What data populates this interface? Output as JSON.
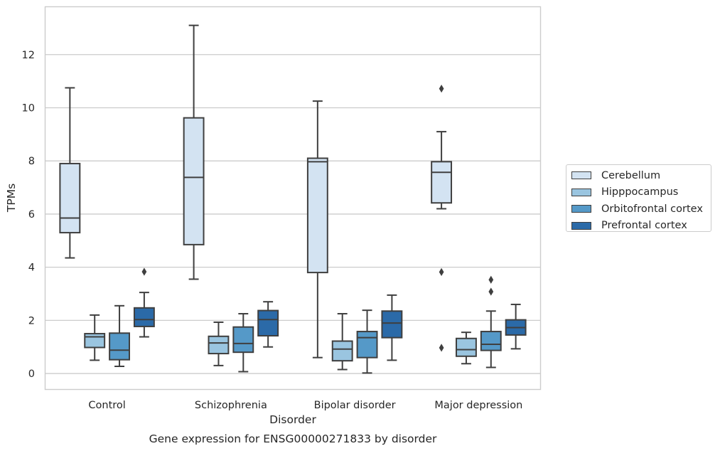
{
  "chart_data": {
    "type": "box",
    "title": "Gene expression for ENSG00000271833 by disorder",
    "xlabel": "Disorder",
    "ylabel": "TPMs",
    "ylim": [
      -0.6,
      13.8
    ],
    "yticks": [
      0,
      2,
      4,
      6,
      8,
      10,
      12
    ],
    "grid": true,
    "legend_position": "right",
    "categories": [
      "Control",
      "Schizophrenia",
      "Bipolar disorder",
      "Major depression"
    ],
    "series": [
      {
        "name": "Cerebellum",
        "color": "#d3e3f2",
        "boxes": [
          {
            "whislo": 4.35,
            "q1": 5.3,
            "med": 5.85,
            "q3": 7.9,
            "whishi": 10.75,
            "fliers": []
          },
          {
            "whislo": 3.55,
            "q1": 4.85,
            "med": 7.38,
            "q3": 9.62,
            "whishi": 13.1,
            "fliers": []
          },
          {
            "whislo": 0.6,
            "q1": 3.8,
            "med": 7.97,
            "q3": 8.1,
            "whishi": 10.25,
            "fliers": []
          },
          {
            "whislo": 6.2,
            "q1": 6.42,
            "med": 7.57,
            "q3": 7.97,
            "whishi": 9.1,
            "fliers": [
              10.72,
              3.82,
              0.97
            ]
          }
        ]
      },
      {
        "name": "Hipppocampus",
        "color": "#9ac5e0",
        "boxes": [
          {
            "whislo": 0.5,
            "q1": 0.98,
            "med": 1.38,
            "q3": 1.5,
            "whishi": 2.2,
            "fliers": []
          },
          {
            "whislo": 0.3,
            "q1": 0.75,
            "med": 1.15,
            "q3": 1.4,
            "whishi": 1.93,
            "fliers": []
          },
          {
            "whislo": 0.15,
            "q1": 0.48,
            "med": 0.92,
            "q3": 1.22,
            "whishi": 2.25,
            "fliers": []
          },
          {
            "whislo": 0.37,
            "q1": 0.65,
            "med": 0.9,
            "q3": 1.32,
            "whishi": 1.55,
            "fliers": []
          }
        ]
      },
      {
        "name": "Orbitofrontal cortex",
        "color": "#5599c8",
        "boxes": [
          {
            "whislo": 0.27,
            "q1": 0.52,
            "med": 0.88,
            "q3": 1.52,
            "whishi": 2.55,
            "fliers": []
          },
          {
            "whislo": 0.07,
            "q1": 0.8,
            "med": 1.13,
            "q3": 1.75,
            "whishi": 2.25,
            "fliers": []
          },
          {
            "whislo": 0.02,
            "q1": 0.6,
            "med": 1.35,
            "q3": 1.58,
            "whishi": 2.38,
            "fliers": []
          },
          {
            "whislo": 0.23,
            "q1": 0.87,
            "med": 1.1,
            "q3": 1.58,
            "whishi": 2.35,
            "fliers": [
              3.08,
              3.53
            ]
          }
        ]
      },
      {
        "name": "Prefrontal cortex",
        "color": "#2b6aa8",
        "boxes": [
          {
            "whislo": 1.38,
            "q1": 1.77,
            "med": 2.03,
            "q3": 2.47,
            "whishi": 3.05,
            "fliers": [
              3.83
            ]
          },
          {
            "whislo": 1.0,
            "q1": 1.42,
            "med": 2.03,
            "q3": 2.37,
            "whishi": 2.7,
            "fliers": []
          },
          {
            "whislo": 0.5,
            "q1": 1.35,
            "med": 1.9,
            "q3": 2.35,
            "whishi": 2.95,
            "fliers": []
          },
          {
            "whislo": 0.93,
            "q1": 1.45,
            "med": 1.73,
            "q3": 2.02,
            "whishi": 2.6,
            "fliers": []
          }
        ]
      }
    ]
  }
}
